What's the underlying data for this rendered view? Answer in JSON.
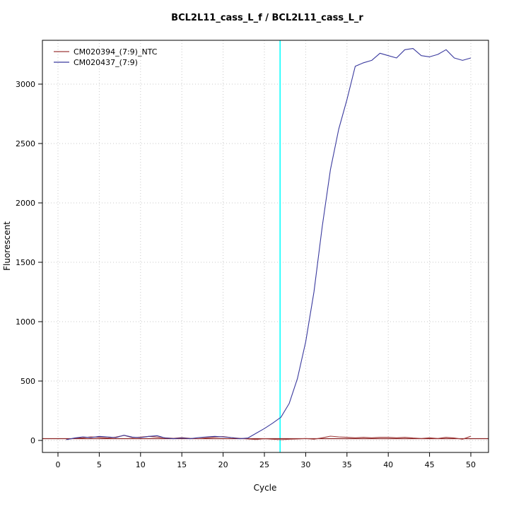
{
  "chart_data": {
    "type": "line",
    "title": "BCL2L11_cass_L_f / BCL2L11_cass_L_r",
    "xlabel": "Cycle",
    "ylabel": "Fluorescent",
    "xlim": [
      0,
      50
    ],
    "ylim": [
      -60,
      3350
    ],
    "x_ticks": [
      0,
      5,
      10,
      15,
      20,
      25,
      30,
      35,
      40,
      45,
      50
    ],
    "y_ticks": [
      0,
      500,
      1000,
      1500,
      2000,
      2500,
      3000
    ],
    "grid": true,
    "legend_position": "top-left",
    "threshold_cycle_line": {
      "x": 26.9,
      "color": "#00ffff"
    },
    "baseline_line": {
      "y": 15,
      "color": "#8b2323"
    },
    "x": [
      1,
      2,
      3,
      4,
      5,
      6,
      7,
      8,
      9,
      10,
      11,
      12,
      13,
      14,
      15,
      16,
      17,
      18,
      19,
      20,
      21,
      22,
      23,
      24,
      25,
      26,
      27,
      28,
      29,
      30,
      31,
      32,
      33,
      34,
      35,
      36,
      37,
      38,
      39,
      40,
      41,
      42,
      43,
      44,
      45,
      46,
      47,
      48,
      49,
      50
    ],
    "series": [
      {
        "name": "CM020394_(7:9)_NTC",
        "color": "#9e3a3a",
        "values": [
          8,
          18,
          22,
          30,
          26,
          20,
          28,
          42,
          24,
          28,
          34,
          28,
          22,
          18,
          24,
          18,
          14,
          22,
          28,
          32,
          24,
          18,
          12,
          8,
          14,
          10,
          6,
          10,
          12,
          16,
          10,
          22,
          36,
          30,
          26,
          22,
          26,
          22,
          26,
          26,
          22,
          26,
          20,
          16,
          22,
          16,
          26,
          20,
          10,
          36
        ]
      },
      {
        "name": "CM020437_(7:9)",
        "color": "#3a3a9e",
        "values": [
          6,
          20,
          30,
          24,
          34,
          30,
          24,
          44,
          28,
          24,
          34,
          40,
          20,
          14,
          20,
          14,
          24,
          30,
          34,
          30,
          24,
          14,
          20,
          60,
          100,
          145,
          195,
          310,
          520,
          830,
          1250,
          1800,
          2280,
          2620,
          2870,
          3150,
          3180,
          3200,
          3260,
          3240,
          3220,
          3290,
          3300,
          3240,
          3230,
          3250,
          3290,
          3220,
          3200,
          3220
        ]
      }
    ]
  }
}
